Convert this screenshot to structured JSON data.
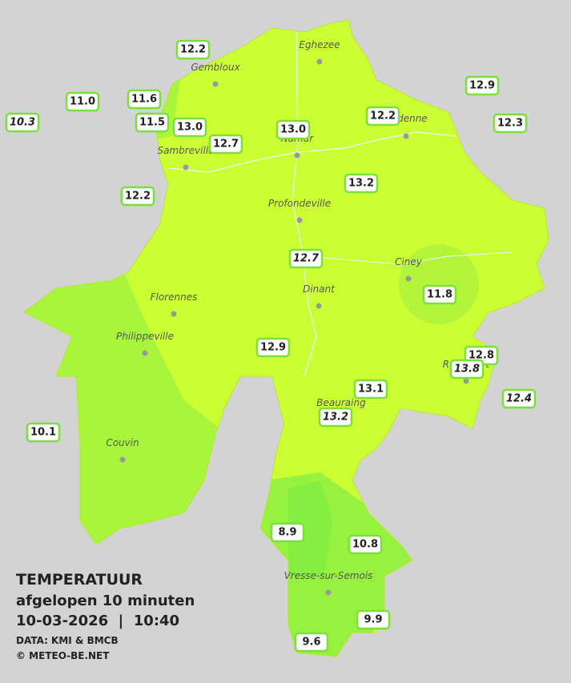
{
  "header": {
    "title": "TEMPERATUUR",
    "subtitle": "afgelopen 10 minuten",
    "datetime": "10-03-2026  |  10:40",
    "source": "DATA: KMI & BMCB",
    "credit": "© METEO-BE.NET"
  },
  "places": [
    "Eghezee",
    "Gembloux",
    "Andenne",
    "Namur",
    "Sambreville",
    "Profondeville",
    "Ciney",
    "Florennes",
    "Dinant",
    "Philippeville",
    "Rochefort",
    "Beauraing",
    "Couvin",
    "Vresse-sur-Semois"
  ],
  "stations": [
    "12.2",
    "11.0",
    "11.6",
    "10.3",
    "11.5",
    "13.0",
    "12.7",
    "13.0",
    "12.2",
    "12.9",
    "12.3",
    "12.2",
    "13.2",
    "12.7",
    "11.8",
    "12.9",
    "12.8",
    "13.8",
    "13.1",
    "12.4",
    "13.2",
    "10.1",
    "8.9",
    "10.8",
    "9.9",
    "9.6"
  ]
}
